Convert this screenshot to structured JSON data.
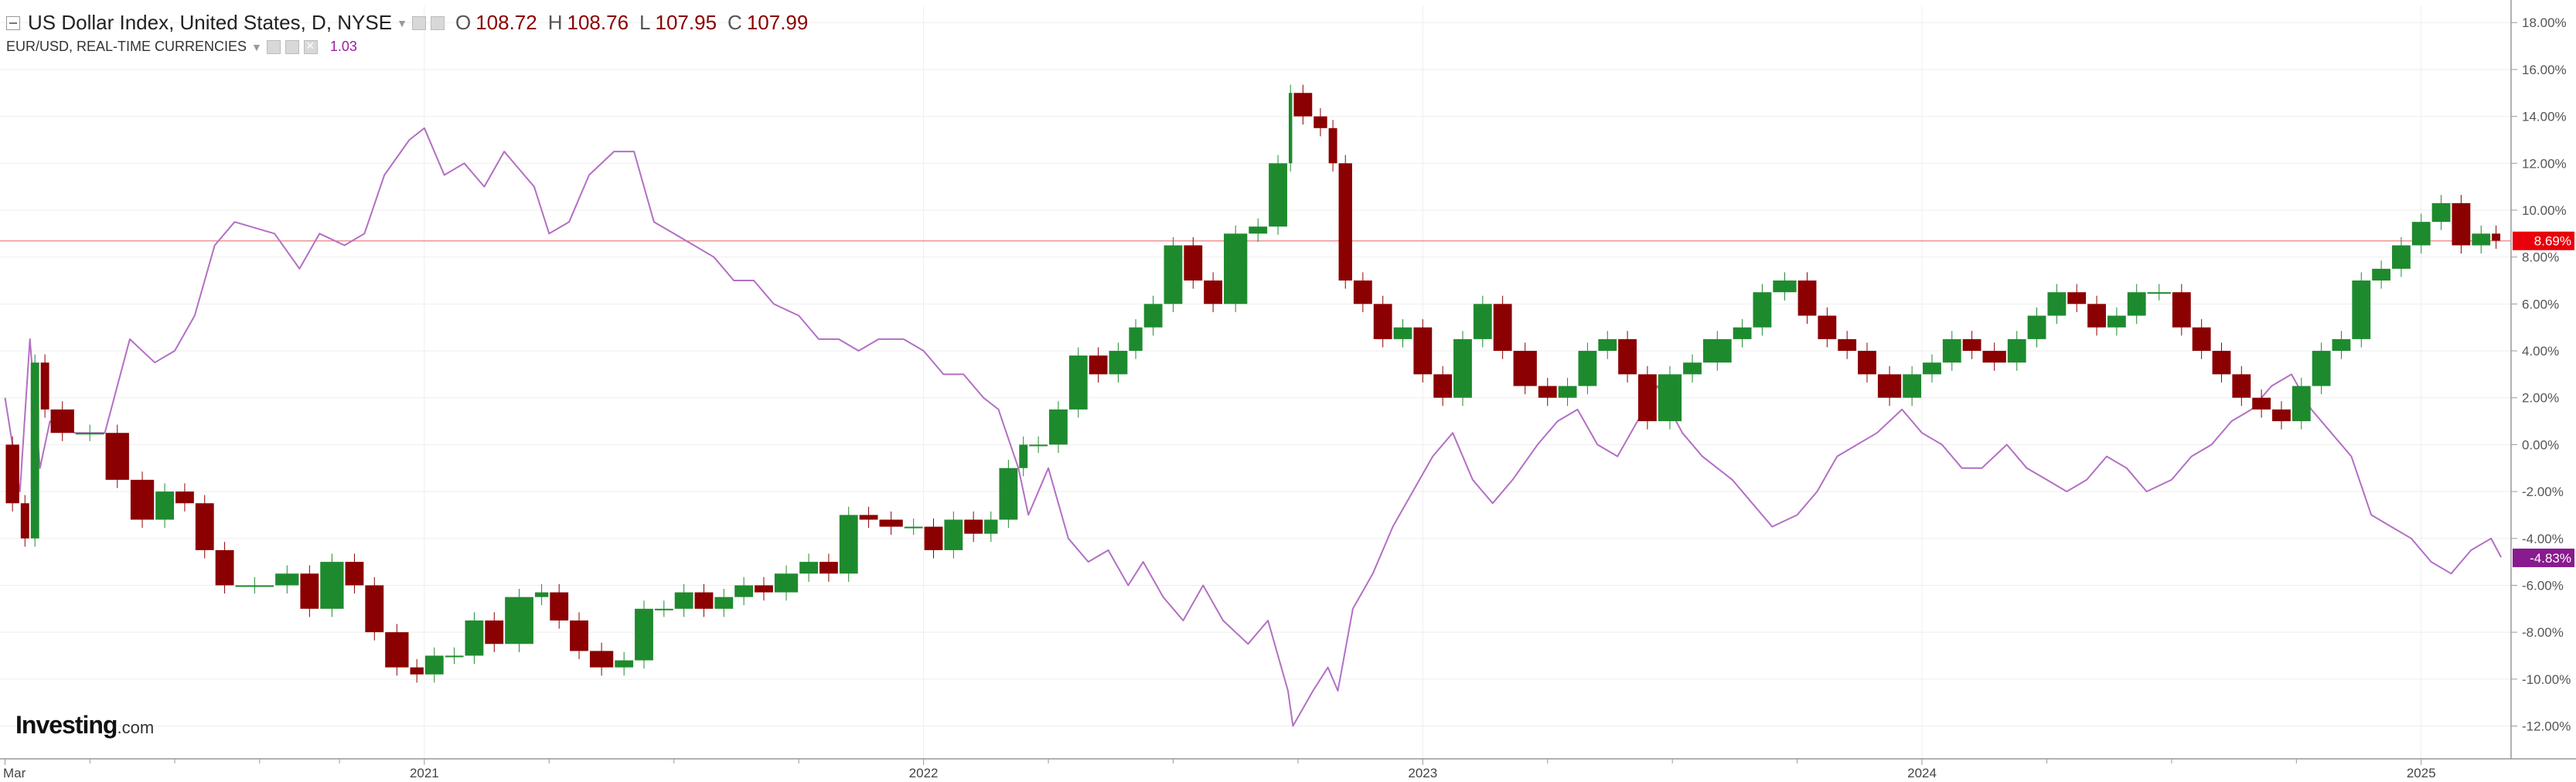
{
  "legend": {
    "primary_name": "US Dollar Index, United States, D, NYSE",
    "o_label": "O",
    "o_value": "108.72",
    "h_label": "H",
    "h_value": "108.76",
    "l_label": "L",
    "l_value": "107.95",
    "c_label": "C",
    "c_value": "107.99",
    "secondary_name": "EUR/USD, REAL-TIME CURRENCIES",
    "secondary_value": "1.03"
  },
  "logo": {
    "main": "Investing",
    "suffix": ".com"
  },
  "colors": {
    "up": "#1e8a2e",
    "down": "#8b0000",
    "eur_line": "#b36fc4",
    "grid": "#eeeeee",
    "current_line": "#e88080",
    "badge_usd": "#e8000b",
    "badge_eur": "#8a1a8f"
  },
  "icons": [
    "collapse-icon",
    "visibility-icon",
    "settings-icon",
    "close-icon",
    "dropdown-caret-icon"
  ],
  "chart_data": {
    "type": "line",
    "comparison_mode": "percent",
    "y_tick_labels": [
      "18.00%",
      "16.00%",
      "14.00%",
      "12.00%",
      "10.00%",
      "8.00%",
      "6.00%",
      "4.00%",
      "2.00%",
      "0.00%",
      "-2.00%",
      "-4.00%",
      "-6.00%",
      "-8.00%",
      "-10.00%",
      "-12.00%"
    ],
    "y_ticks": [
      18,
      16,
      14,
      12,
      10,
      8,
      6,
      4,
      2,
      0,
      -2,
      -4,
      -6,
      -8,
      -10,
      -12
    ],
    "ylim": [
      -13.4,
      18.7
    ],
    "xlim": [
      2020.15,
      2025.18
    ],
    "x_tick_labels": [
      {
        "label": "Mar",
        "x": 2020.16
      },
      {
        "label": "2021",
        "x": 2021.0
      },
      {
        "label": "2022",
        "x": 2022.0
      },
      {
        "label": "2023",
        "x": 2023.0
      },
      {
        "label": "2024",
        "x": 2024.0
      },
      {
        "label": "2025",
        "x": 2025.0
      }
    ],
    "x_minor_ticks": [
      2020.33,
      2020.5,
      2020.67,
      2020.83,
      2021.25,
      2021.5,
      2021.75,
      2022.25,
      2022.5,
      2022.75,
      2023.25,
      2023.5,
      2023.75,
      2024.25,
      2024.5,
      2024.75
    ],
    "current_values": {
      "usd": 8.69,
      "eur": -4.83
    },
    "current_labels": {
      "usd": "8.69%",
      "eur": "-4.83%"
    },
    "series": [
      {
        "kind": "candlestick",
        "points": [
          [
            2020.16,
            0.0
          ],
          [
            2020.19,
            -2.5
          ],
          [
            2020.21,
            -4.0
          ],
          [
            2020.23,
            3.5
          ],
          [
            2020.25,
            1.5
          ],
          [
            2020.3,
            0.5
          ],
          [
            2020.36,
            0.5
          ],
          [
            2020.41,
            -1.5
          ],
          [
            2020.46,
            -3.2
          ],
          [
            2020.5,
            -2.0
          ],
          [
            2020.54,
            -2.5
          ],
          [
            2020.58,
            -4.5
          ],
          [
            2020.62,
            -6.0
          ],
          [
            2020.7,
            -6.0
          ],
          [
            2020.75,
            -5.5
          ],
          [
            2020.79,
            -7.0
          ],
          [
            2020.84,
            -5.0
          ],
          [
            2020.88,
            -6.0
          ],
          [
            2020.92,
            -8.0
          ],
          [
            2020.97,
            -9.5
          ],
          [
            2021.0,
            -9.8
          ],
          [
            2021.04,
            -9.0
          ],
          [
            2021.08,
            -9.0
          ],
          [
            2021.12,
            -7.5
          ],
          [
            2021.16,
            -8.5
          ],
          [
            2021.22,
            -6.5
          ],
          [
            2021.25,
            -6.3
          ],
          [
            2021.29,
            -7.5
          ],
          [
            2021.33,
            -8.8
          ],
          [
            2021.38,
            -9.5
          ],
          [
            2021.42,
            -9.2
          ],
          [
            2021.46,
            -7.0
          ],
          [
            2021.5,
            -7.0
          ],
          [
            2021.54,
            -6.3
          ],
          [
            2021.58,
            -7.0
          ],
          [
            2021.62,
            -6.5
          ],
          [
            2021.66,
            -6.0
          ],
          [
            2021.7,
            -6.3
          ],
          [
            2021.75,
            -5.5
          ],
          [
            2021.79,
            -5.0
          ],
          [
            2021.83,
            -5.5
          ],
          [
            2021.87,
            -3.0
          ],
          [
            2021.91,
            -3.2
          ],
          [
            2021.96,
            -3.5
          ],
          [
            2022.0,
            -3.5
          ],
          [
            2022.04,
            -4.5
          ],
          [
            2022.08,
            -3.2
          ],
          [
            2022.12,
            -3.8
          ],
          [
            2022.15,
            -3.2
          ],
          [
            2022.19,
            -1.0
          ],
          [
            2022.21,
            0.0
          ],
          [
            2022.25,
            0.0
          ],
          [
            2022.29,
            1.5
          ],
          [
            2022.33,
            3.8
          ],
          [
            2022.37,
            3.0
          ],
          [
            2022.41,
            4.0
          ],
          [
            2022.44,
            5.0
          ],
          [
            2022.48,
            6.0
          ],
          [
            2022.52,
            8.5
          ],
          [
            2022.56,
            7.0
          ],
          [
            2022.6,
            6.0
          ],
          [
            2022.65,
            9.0
          ],
          [
            2022.69,
            9.3
          ],
          [
            2022.73,
            12.0
          ],
          [
            2022.74,
            15.0
          ],
          [
            2022.78,
            14.0
          ],
          [
            2022.81,
            13.5
          ],
          [
            2022.83,
            12.0
          ],
          [
            2022.86,
            7.0
          ],
          [
            2022.9,
            6.0
          ],
          [
            2022.94,
            4.5
          ],
          [
            2022.98,
            5.0
          ],
          [
            2023.02,
            3.0
          ],
          [
            2023.06,
            2.0
          ],
          [
            2023.1,
            4.5
          ],
          [
            2023.14,
            6.0
          ],
          [
            2023.18,
            4.0
          ],
          [
            2023.23,
            2.5
          ],
          [
            2023.27,
            2.0
          ],
          [
            2023.31,
            2.5
          ],
          [
            2023.35,
            4.0
          ],
          [
            2023.39,
            4.5
          ],
          [
            2023.43,
            3.0
          ],
          [
            2023.47,
            1.0
          ],
          [
            2023.52,
            3.0
          ],
          [
            2023.56,
            3.5
          ],
          [
            2023.62,
            4.5
          ],
          [
            2023.66,
            5.0
          ],
          [
            2023.7,
            6.5
          ],
          [
            2023.75,
            7.0
          ],
          [
            2023.79,
            5.5
          ],
          [
            2023.83,
            4.5
          ],
          [
            2023.87,
            4.0
          ],
          [
            2023.91,
            3.0
          ],
          [
            2023.96,
            2.0
          ],
          [
            2024.0,
            3.0
          ],
          [
            2024.04,
            3.5
          ],
          [
            2024.08,
            4.5
          ],
          [
            2024.12,
            4.0
          ],
          [
            2024.17,
            3.5
          ],
          [
            2024.21,
            4.5
          ],
          [
            2024.25,
            5.5
          ],
          [
            2024.29,
            6.5
          ],
          [
            2024.33,
            6.0
          ],
          [
            2024.37,
            5.0
          ],
          [
            2024.41,
            5.5
          ],
          [
            2024.45,
            6.5
          ],
          [
            2024.5,
            6.5
          ],
          [
            2024.54,
            5.0
          ],
          [
            2024.58,
            4.0
          ],
          [
            2024.62,
            3.0
          ],
          [
            2024.66,
            2.0
          ],
          [
            2024.7,
            1.5
          ],
          [
            2024.74,
            1.0
          ],
          [
            2024.78,
            2.5
          ],
          [
            2024.82,
            4.0
          ],
          [
            2024.86,
            4.5
          ],
          [
            2024.9,
            7.0
          ],
          [
            2024.94,
            7.5
          ],
          [
            2024.98,
            8.5
          ],
          [
            2025.02,
            9.5
          ],
          [
            2025.06,
            10.3
          ],
          [
            2025.1,
            8.5
          ],
          [
            2025.14,
            9.0
          ],
          [
            2025.16,
            8.7
          ]
        ]
      },
      {
        "kind": "line",
        "points": [
          [
            2020.16,
            2.0
          ],
          [
            2020.19,
            -2.0
          ],
          [
            2020.21,
            4.5
          ],
          [
            2020.23,
            -1.0
          ],
          [
            2020.25,
            1.0
          ],
          [
            2020.3,
            0.5
          ],
          [
            2020.36,
            0.5
          ],
          [
            2020.41,
            4.5
          ],
          [
            2020.46,
            3.5
          ],
          [
            2020.5,
            4.0
          ],
          [
            2020.54,
            5.5
          ],
          [
            2020.58,
            8.5
          ],
          [
            2020.62,
            9.5
          ],
          [
            2020.7,
            9.0
          ],
          [
            2020.75,
            7.5
          ],
          [
            2020.79,
            9.0
          ],
          [
            2020.84,
            8.5
          ],
          [
            2020.88,
            9.0
          ],
          [
            2020.92,
            11.5
          ],
          [
            2020.97,
            13.0
          ],
          [
            2021.0,
            13.5
          ],
          [
            2021.04,
            11.5
          ],
          [
            2021.08,
            12.0
          ],
          [
            2021.12,
            11.0
          ],
          [
            2021.16,
            12.5
          ],
          [
            2021.22,
            11.0
          ],
          [
            2021.25,
            9.0
          ],
          [
            2021.29,
            9.5
          ],
          [
            2021.33,
            11.5
          ],
          [
            2021.38,
            12.5
          ],
          [
            2021.42,
            12.5
          ],
          [
            2021.46,
            9.5
          ],
          [
            2021.5,
            9.0
          ],
          [
            2021.54,
            8.5
          ],
          [
            2021.58,
            8.0
          ],
          [
            2021.62,
            7.0
          ],
          [
            2021.66,
            7.0
          ],
          [
            2021.7,
            6.0
          ],
          [
            2021.75,
            5.5
          ],
          [
            2021.79,
            4.5
          ],
          [
            2021.83,
            4.5
          ],
          [
            2021.87,
            4.0
          ],
          [
            2021.91,
            4.5
          ],
          [
            2021.96,
            4.5
          ],
          [
            2022.0,
            4.0
          ],
          [
            2022.04,
            3.0
          ],
          [
            2022.08,
            3.0
          ],
          [
            2022.12,
            2.0
          ],
          [
            2022.15,
            1.5
          ],
          [
            2022.19,
            -1.0
          ],
          [
            2022.21,
            -3.0
          ],
          [
            2022.25,
            -1.0
          ],
          [
            2022.29,
            -4.0
          ],
          [
            2022.33,
            -5.0
          ],
          [
            2022.37,
            -4.5
          ],
          [
            2022.41,
            -6.0
          ],
          [
            2022.44,
            -5.0
          ],
          [
            2022.48,
            -6.5
          ],
          [
            2022.52,
            -7.5
          ],
          [
            2022.56,
            -6.0
          ],
          [
            2022.6,
            -7.5
          ],
          [
            2022.65,
            -8.5
          ],
          [
            2022.69,
            -7.5
          ],
          [
            2022.73,
            -10.5
          ],
          [
            2022.74,
            -12.0
          ],
          [
            2022.78,
            -10.5
          ],
          [
            2022.81,
            -9.5
          ],
          [
            2022.83,
            -10.5
          ],
          [
            2022.86,
            -7.0
          ],
          [
            2022.9,
            -5.5
          ],
          [
            2022.94,
            -3.5
          ],
          [
            2022.98,
            -2.0
          ],
          [
            2023.02,
            -0.5
          ],
          [
            2023.06,
            0.5
          ],
          [
            2023.1,
            -1.5
          ],
          [
            2023.14,
            -2.5
          ],
          [
            2023.18,
            -1.5
          ],
          [
            2023.23,
            0.0
          ],
          [
            2023.27,
            1.0
          ],
          [
            2023.31,
            1.5
          ],
          [
            2023.35,
            0.0
          ],
          [
            2023.39,
            -0.5
          ],
          [
            2023.43,
            1.0
          ],
          [
            2023.47,
            2.5
          ],
          [
            2023.52,
            0.5
          ],
          [
            2023.56,
            -0.5
          ],
          [
            2023.62,
            -1.5
          ],
          [
            2023.66,
            -2.5
          ],
          [
            2023.7,
            -3.5
          ],
          [
            2023.75,
            -3.0
          ],
          [
            2023.79,
            -2.0
          ],
          [
            2023.83,
            -0.5
          ],
          [
            2023.87,
            0.0
          ],
          [
            2023.91,
            0.5
          ],
          [
            2023.96,
            1.5
          ],
          [
            2024.0,
            0.5
          ],
          [
            2024.04,
            0.0
          ],
          [
            2024.08,
            -1.0
          ],
          [
            2024.12,
            -1.0
          ],
          [
            2024.17,
            0.0
          ],
          [
            2024.21,
            -1.0
          ],
          [
            2024.25,
            -1.5
          ],
          [
            2024.29,
            -2.0
          ],
          [
            2024.33,
            -1.5
          ],
          [
            2024.37,
            -0.5
          ],
          [
            2024.41,
            -1.0
          ],
          [
            2024.45,
            -2.0
          ],
          [
            2024.5,
            -1.5
          ],
          [
            2024.54,
            -0.5
          ],
          [
            2024.58,
            0.0
          ],
          [
            2024.62,
            1.0
          ],
          [
            2024.66,
            1.5
          ],
          [
            2024.7,
            2.5
          ],
          [
            2024.74,
            3.0
          ],
          [
            2024.78,
            1.5
          ],
          [
            2024.82,
            0.5
          ],
          [
            2024.86,
            -0.5
          ],
          [
            2024.9,
            -3.0
          ],
          [
            2024.94,
            -3.5
          ],
          [
            2024.98,
            -4.0
          ],
          [
            2025.02,
            -5.0
          ],
          [
            2025.06,
            -5.5
          ],
          [
            2025.1,
            -4.5
          ],
          [
            2025.14,
            -4.0
          ],
          [
            2025.16,
            -4.8
          ]
        ]
      }
    ]
  }
}
